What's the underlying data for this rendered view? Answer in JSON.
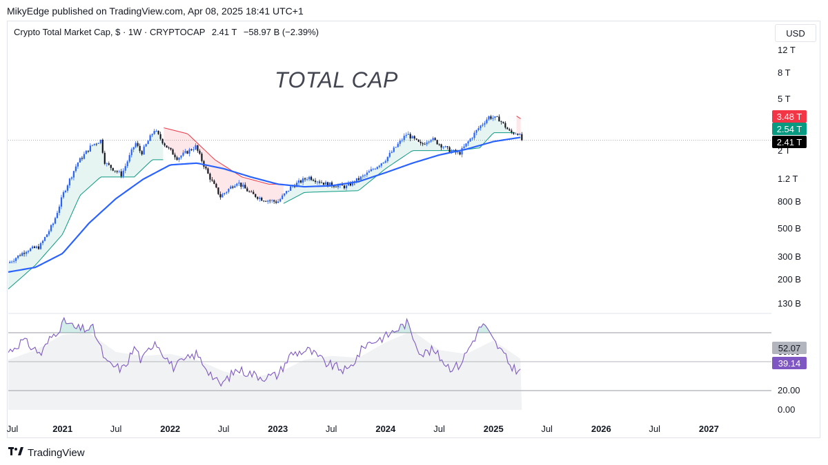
{
  "header": {
    "published": "MikyEdge published on TradingView.com, Apr 08, 2025 18:41 UTC+1"
  },
  "legend": {
    "title": "Crypto Total Market Cap, $ · 1W · CRYPTOCAP",
    "last": "2.41 T",
    "change": "−58.97 B (−2.39%)"
  },
  "currency": "USD",
  "annotation": "TOTAL CAP",
  "footer": {
    "brand": "TradingView",
    "logo_icon": "tradingview-logo-icon"
  },
  "price_badges": [
    {
      "label": "3.48 T",
      "bg": "#f23645",
      "fg": "#ffffff"
    },
    {
      "label": "2.54 T",
      "bg": "#089981",
      "fg": "#ffffff"
    },
    {
      "label": "2.41 T",
      "bg": "#000000",
      "fg": "#ffffff"
    }
  ],
  "osc_badges": [
    {
      "label": "52.07",
      "bg": "#b2b5be",
      "fg": "#131722"
    },
    {
      "label": "39.14",
      "bg": "#7e57c2",
      "fg": "#ffffff"
    }
  ],
  "colors": {
    "candle_up": "#2962ff",
    "candle_down": "#131722",
    "ma": "#2962ff",
    "trail_up": "#089981",
    "trail_down": "#f23645",
    "rsi": "#7e57c2"
  },
  "chart_data": [
    {
      "type": "candlestick",
      "scale": "log",
      "ylim": [
        110000000000.0,
        14000000000000.0
      ],
      "xlim": [
        "2020-07-01",
        "2027-08-01"
      ],
      "y_ticks": [
        {
          "label": "12 T",
          "value": 12000000000000.0
        },
        {
          "label": "8 T",
          "value": 8000000000000.0
        },
        {
          "label": "5 T",
          "value": 5000000000000.0
        },
        {
          "label": "2 T",
          "value": 2000000000000.0
        },
        {
          "label": "1.2 T",
          "value": 1200000000000.0
        },
        {
          "label": "800 B",
          "value": 800000000000.0
        },
        {
          "label": "500 B",
          "value": 500000000000.0
        },
        {
          "label": "300 B",
          "value": 300000000000.0
        },
        {
          "label": "200 B",
          "value": 200000000000.0
        },
        {
          "label": "130 B",
          "value": 130000000000.0
        }
      ],
      "x_ticks": [
        {
          "label": "Jul",
          "date": "2020-07-01",
          "bold": false
        },
        {
          "label": "2021",
          "date": "2021-01-01",
          "bold": true
        },
        {
          "label": "Jul",
          "date": "2021-07-01",
          "bold": false
        },
        {
          "label": "2022",
          "date": "2022-01-01",
          "bold": true
        },
        {
          "label": "Jul",
          "date": "2022-07-01",
          "bold": false
        },
        {
          "label": "2023",
          "date": "2023-01-01",
          "bold": true
        },
        {
          "label": "Jul",
          "date": "2023-07-01",
          "bold": false
        },
        {
          "label": "2024",
          "date": "2024-01-01",
          "bold": true
        },
        {
          "label": "Jul",
          "date": "2024-07-01",
          "bold": false
        },
        {
          "label": "2025",
          "date": "2025-01-01",
          "bold": true
        },
        {
          "label": "Jul",
          "date": "2025-07-01",
          "bold": false
        },
        {
          "label": "2026",
          "date": "2026-01-01",
          "bold": true
        },
        {
          "label": "Jul",
          "date": "2026-07-01",
          "bold": false
        },
        {
          "label": "2027",
          "date": "2027-01-01",
          "bold": true
        }
      ],
      "close_keyframes": [
        [
          "2020-07-01",
          270000000000.0
        ],
        [
          "2020-09-01",
          340000000000.0
        ],
        [
          "2020-10-15",
          360000000000.0
        ],
        [
          "2020-12-01",
          550000000000.0
        ],
        [
          "2021-01-05",
          950000000000.0
        ],
        [
          "2021-02-20",
          1600000000000.0
        ],
        [
          "2021-04-10",
          2200000000000.0
        ],
        [
          "2021-05-10",
          2400000000000.0
        ],
        [
          "2021-05-25",
          1600000000000.0
        ],
        [
          "2021-07-20",
          1300000000000.0
        ],
        [
          "2021-09-05",
          2300000000000.0
        ],
        [
          "2021-09-25",
          1900000000000.0
        ],
        [
          "2021-11-08",
          2900000000000.0
        ],
        [
          "2021-12-15",
          2200000000000.0
        ],
        [
          "2022-01-25",
          1750000000000.0
        ],
        [
          "2022-03-28",
          2150000000000.0
        ],
        [
          "2022-05-10",
          1300000000000.0
        ],
        [
          "2022-06-20",
          880000000000.0
        ],
        [
          "2022-08-15",
          1150000000000.0
        ],
        [
          "2022-10-01",
          930000000000.0
        ],
        [
          "2022-11-10",
          840000000000.0
        ],
        [
          "2022-12-31",
          800000000000.0
        ],
        [
          "2023-02-15",
          1050000000000.0
        ],
        [
          "2023-04-15",
          1250000000000.0
        ],
        [
          "2023-06-15",
          1100000000000.0
        ],
        [
          "2023-08-20",
          1050000000000.0
        ],
        [
          "2023-10-25",
          1300000000000.0
        ],
        [
          "2023-12-31",
          1700000000000.0
        ],
        [
          "2024-03-13",
          2700000000000.0
        ],
        [
          "2024-05-01",
          2200000000000.0
        ],
        [
          "2024-06-01",
          2500000000000.0
        ],
        [
          "2024-08-05",
          2000000000000.0
        ],
        [
          "2024-09-07",
          1900000000000.0
        ],
        [
          "2024-11-12",
          3000000000000.0
        ],
        [
          "2024-12-16",
          3650000000000.0
        ],
        [
          "2025-01-20",
          3500000000000.0
        ],
        [
          "2025-02-27",
          2750000000000.0
        ],
        [
          "2025-03-25",
          2750000000000.0
        ],
        [
          "2025-04-07",
          2410000000000.0
        ]
      ],
      "ma_keyframes": [
        [
          "2020-07-01",
          230000000000.0
        ],
        [
          "2020-10-01",
          250000000000.0
        ],
        [
          "2021-01-01",
          320000000000.0
        ],
        [
          "2021-04-01",
          550000000000.0
        ],
        [
          "2021-07-01",
          850000000000.0
        ],
        [
          "2021-10-01",
          1200000000000.0
        ],
        [
          "2022-01-01",
          1550000000000.0
        ],
        [
          "2022-04-01",
          1600000000000.0
        ],
        [
          "2022-07-01",
          1450000000000.0
        ],
        [
          "2022-10-01",
          1250000000000.0
        ],
        [
          "2023-01-01",
          1100000000000.0
        ],
        [
          "2023-04-01",
          1050000000000.0
        ],
        [
          "2023-07-01",
          1070000000000.0
        ],
        [
          "2023-10-01",
          1150000000000.0
        ],
        [
          "2024-01-01",
          1350000000000.0
        ],
        [
          "2024-04-01",
          1600000000000.0
        ],
        [
          "2024-07-01",
          1850000000000.0
        ],
        [
          "2024-10-01",
          2050000000000.0
        ],
        [
          "2025-01-01",
          2350000000000.0
        ],
        [
          "2025-04-07",
          2540000000000.0
        ]
      ],
      "trail_segments": [
        {
          "dir": "up",
          "points": [
            [
              "2020-07-01",
              170000000000.0
            ],
            [
              "2020-10-01",
              260000000000.0
            ],
            [
              "2021-01-01",
              450000000000.0
            ],
            [
              "2021-03-01",
              900000000000.0
            ],
            [
              "2021-05-10",
              1250000000000.0
            ],
            [
              "2021-09-01",
              1250000000000.0
            ],
            [
              "2021-11-01",
              1700000000000.0
            ],
            [
              "2021-12-10",
              1700000000000.0
            ]
          ]
        },
        {
          "dir": "down",
          "points": [
            [
              "2021-12-10",
              3000000000000.0
            ],
            [
              "2022-03-01",
              2700000000000.0
            ],
            [
              "2022-06-01",
              1700000000000.0
            ],
            [
              "2022-09-01",
              1250000000000.0
            ],
            [
              "2022-12-01",
              1100000000000.0
            ],
            [
              "2023-01-20",
              1100000000000.0
            ]
          ]
        },
        {
          "dir": "up",
          "points": [
            [
              "2023-01-20",
              780000000000.0
            ],
            [
              "2023-04-01",
              950000000000.0
            ],
            [
              "2023-10-01",
              980000000000.0
            ],
            [
              "2024-01-01",
              1450000000000.0
            ],
            [
              "2024-04-01",
              2000000000000.0
            ],
            [
              "2024-09-01",
              2000000000000.0
            ],
            [
              "2024-11-15",
              2100000000000.0
            ],
            [
              "2025-01-01",
              2750000000000.0
            ],
            [
              "2025-03-20",
              2750000000000.0
            ]
          ]
        },
        {
          "dir": "down",
          "points": [
            [
              "2025-03-20",
              3700000000000.0
            ],
            [
              "2025-04-07",
              3480000000000.0
            ]
          ]
        }
      ]
    },
    {
      "type": "line",
      "name": "oscillator",
      "ylim": [
        0,
        100
      ],
      "y_ticks": [
        {
          "label": "60.00",
          "value": 60
        },
        {
          "label": "20.00",
          "value": 20
        },
        {
          "label": "0.00",
          "value": 0
        }
      ],
      "levels": [
        80,
        50,
        20
      ],
      "rsi_keyframes": [
        [
          "2020-07-01",
          60
        ],
        [
          "2020-08-20",
          72
        ],
        [
          "2020-10-20",
          58
        ],
        [
          "2020-11-20",
          74
        ],
        [
          "2021-01-10",
          92
        ],
        [
          "2021-02-15",
          84
        ],
        [
          "2021-04-15",
          84
        ],
        [
          "2021-05-30",
          48
        ],
        [
          "2021-07-25",
          42
        ],
        [
          "2021-09-05",
          66
        ],
        [
          "2021-09-25",
          50
        ],
        [
          "2021-11-10",
          72
        ],
        [
          "2022-01-10",
          44
        ],
        [
          "2022-03-30",
          58
        ],
        [
          "2022-06-18",
          25
        ],
        [
          "2022-08-15",
          42
        ],
        [
          "2022-11-10",
          34
        ],
        [
          "2022-12-31",
          36
        ],
        [
          "2023-02-15",
          58
        ],
        [
          "2023-04-15",
          62
        ],
        [
          "2023-06-15",
          48
        ],
        [
          "2023-08-25",
          40
        ],
        [
          "2023-10-25",
          68
        ],
        [
          "2023-12-31",
          76
        ],
        [
          "2024-03-13",
          90
        ],
        [
          "2024-05-01",
          58
        ],
        [
          "2024-06-10",
          62
        ],
        [
          "2024-08-05",
          44
        ],
        [
          "2024-09-07",
          46
        ],
        [
          "2024-11-25",
          90
        ],
        [
          "2024-12-31",
          72
        ],
        [
          "2025-02-03",
          58
        ],
        [
          "2025-03-01",
          45
        ],
        [
          "2025-04-07",
          39
        ]
      ],
      "ma_keyframes": [
        [
          "2020-07-01",
          52
        ],
        [
          "2020-10-01",
          62
        ],
        [
          "2021-01-01",
          78
        ],
        [
          "2021-04-01",
          80
        ],
        [
          "2021-07-01",
          60
        ],
        [
          "2021-10-01",
          56
        ],
        [
          "2022-01-01",
          58
        ],
        [
          "2022-04-01",
          52
        ],
        [
          "2022-07-01",
          40
        ],
        [
          "2022-10-01",
          34
        ],
        [
          "2023-01-01",
          38
        ],
        [
          "2023-04-01",
          52
        ],
        [
          "2023-07-01",
          56
        ],
        [
          "2023-10-01",
          54
        ],
        [
          "2024-01-01",
          70
        ],
        [
          "2024-04-01",
          82
        ],
        [
          "2024-07-01",
          62
        ],
        [
          "2024-10-01",
          58
        ],
        [
          "2025-01-01",
          72
        ],
        [
          "2025-04-07",
          52
        ]
      ]
    }
  ]
}
